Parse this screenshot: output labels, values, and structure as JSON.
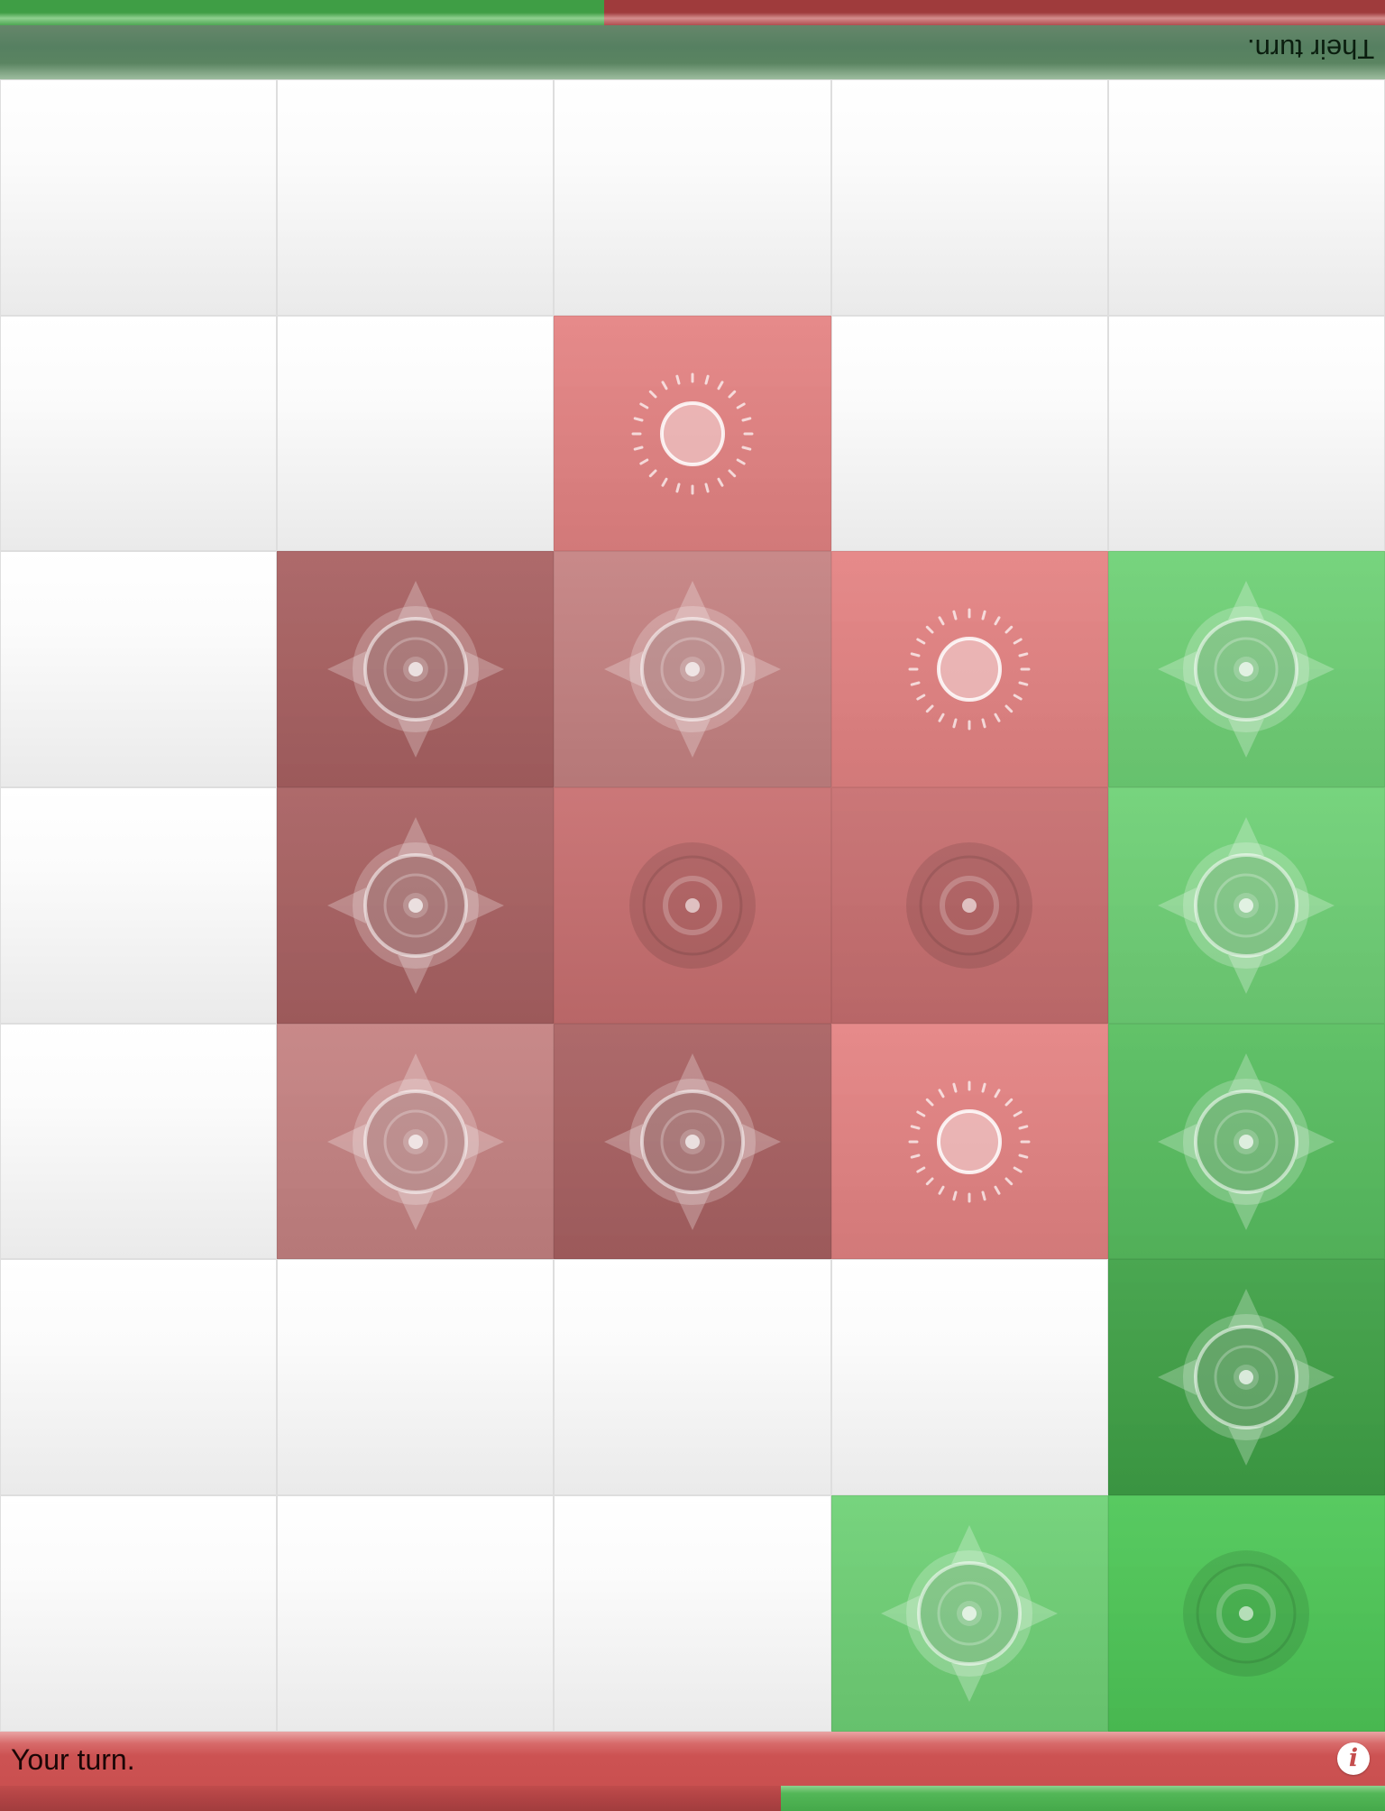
{
  "top_status": {
    "text": "Their turn."
  },
  "bottom_status": {
    "text": "Your turn.",
    "info_label": "i"
  },
  "top_score": {
    "green_fraction": 0.436,
    "red_fraction": 0.564
  },
  "bottom_score": {
    "red_fraction": 0.564,
    "green_fraction": 0.436
  },
  "colors": {
    "red_base": "#e48383",
    "red_dark": "#a96162",
    "red_light": "#c58282",
    "red_mid": "#c86f70",
    "green_base": "#6fd176",
    "green_mid": "#58be60",
    "green_dark": "#3fa146",
    "green_bright": "#4ec757"
  },
  "board": {
    "columns": 5,
    "rows": 7,
    "cells": [
      [
        {
          "owner": "none"
        },
        {
          "owner": "none"
        },
        {
          "owner": "none"
        },
        {
          "owner": "none"
        },
        {
          "owner": "none"
        }
      ],
      [
        {
          "owner": "none"
        },
        {
          "owner": "none"
        },
        {
          "owner": "red",
          "shade": "base",
          "icon": "sun"
        },
        {
          "owner": "none"
        },
        {
          "owner": "none"
        }
      ],
      [
        {
          "owner": "none"
        },
        {
          "owner": "red",
          "shade": "dark",
          "icon": "compass"
        },
        {
          "owner": "red",
          "shade": "light",
          "icon": "compass"
        },
        {
          "owner": "red",
          "shade": "base",
          "icon": "sun"
        },
        {
          "owner": "green",
          "shade": "base",
          "icon": "compass"
        }
      ],
      [
        {
          "owner": "none"
        },
        {
          "owner": "red",
          "shade": "dark",
          "icon": "compass"
        },
        {
          "owner": "red",
          "shade": "mid",
          "icon": "target"
        },
        {
          "owner": "red",
          "shade": "mid",
          "icon": "target"
        },
        {
          "owner": "green",
          "shade": "base",
          "icon": "compass"
        }
      ],
      [
        {
          "owner": "none"
        },
        {
          "owner": "red",
          "shade": "light",
          "icon": "compass"
        },
        {
          "owner": "red",
          "shade": "dark",
          "icon": "compass"
        },
        {
          "owner": "red",
          "shade": "base",
          "icon": "sun"
        },
        {
          "owner": "green",
          "shade": "mid",
          "icon": "compass"
        }
      ],
      [
        {
          "owner": "none"
        },
        {
          "owner": "none"
        },
        {
          "owner": "none"
        },
        {
          "owner": "none"
        },
        {
          "owner": "green",
          "shade": "dark",
          "icon": "compass"
        }
      ],
      [
        {
          "owner": "none"
        },
        {
          "owner": "none"
        },
        {
          "owner": "none"
        },
        {
          "owner": "green",
          "shade": "base",
          "icon": "compass"
        },
        {
          "owner": "green",
          "shade": "bright",
          "icon": "target"
        }
      ]
    ]
  }
}
